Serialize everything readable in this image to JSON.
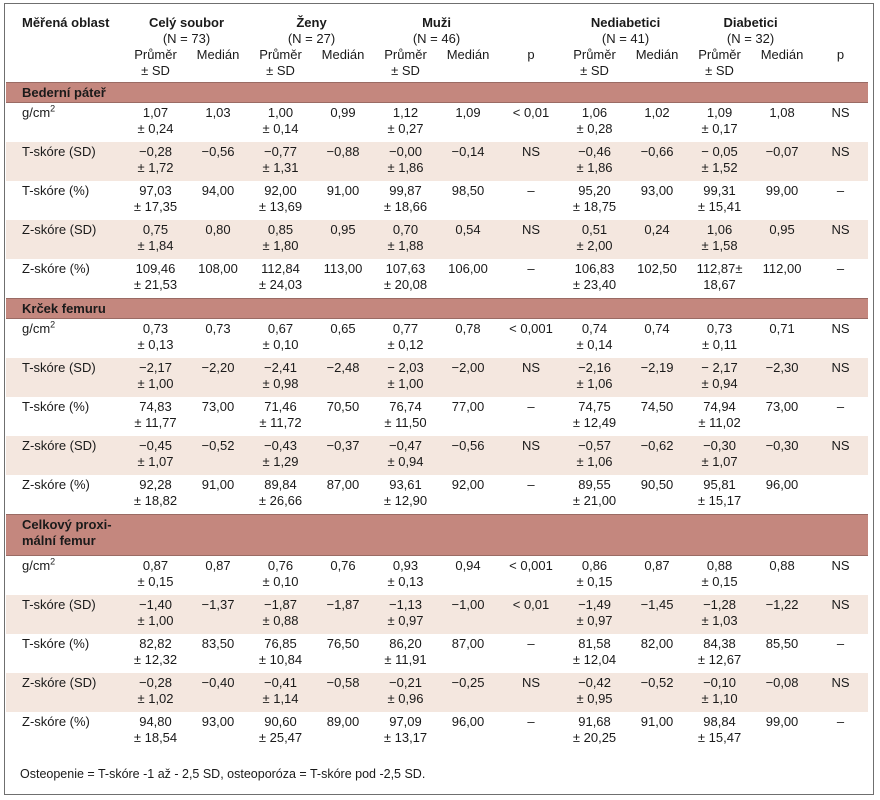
{
  "header": {
    "region_label": "Měřená oblast",
    "groups": [
      {
        "name": "Celý soubor",
        "n": "(N = 73)"
      },
      {
        "name": "Ženy",
        "n": "(N = 27)"
      },
      {
        "name": "Muži",
        "n": "(N = 46)"
      },
      {
        "name": "Nediabetici",
        "n": "(N = 41)"
      },
      {
        "name": "Diabetici",
        "n": "(N = 32)"
      }
    ],
    "mean_label_1": "Průměr",
    "mean_label_2": "± SD",
    "median_label": "Medián",
    "p_label": "p"
  },
  "sections": [
    {
      "title": "Bederní páteř",
      "title_line2": "",
      "rows": [
        {
          "label": "g/cm",
          "sup": "2",
          "c": [
            [
              "1,07",
              "± 0,24"
            ],
            [
              "1,03"
            ],
            [
              "1,00",
              "± 0,14"
            ],
            [
              "0,99"
            ],
            [
              "1,12",
              "± 0,27"
            ],
            [
              "1,09"
            ],
            [
              "< 0,01"
            ],
            [
              "1,06",
              "± 0,28"
            ],
            [
              "1,02"
            ],
            [
              "1,09",
              "± 0,17"
            ],
            [
              "1,08"
            ],
            [
              "NS"
            ]
          ]
        },
        {
          "label": "T-skóre (SD)",
          "sup": "",
          "c": [
            [
              "−0,28",
              "± 1,72"
            ],
            [
              "−0,56"
            ],
            [
              "−0,77",
              "± 1,31"
            ],
            [
              "−0,88"
            ],
            [
              "−0,00",
              "± 1,86"
            ],
            [
              "−0,14"
            ],
            [
              "NS"
            ],
            [
              "−0,46",
              "± 1,86"
            ],
            [
              "−0,66"
            ],
            [
              "− 0,05",
              "± 1,52"
            ],
            [
              "−0,07"
            ],
            [
              "NS"
            ]
          ]
        },
        {
          "label": "T-skóre (%)",
          "sup": "",
          "c": [
            [
              "97,03",
              "± 17,35"
            ],
            [
              "94,00"
            ],
            [
              "92,00",
              "± 13,69"
            ],
            [
              "91,00"
            ],
            [
              "99,87",
              "± 18,66"
            ],
            [
              "98,50"
            ],
            [
              "–"
            ],
            [
              "95,20",
              "± 18,75"
            ],
            [
              "93,00"
            ],
            [
              "99,31",
              "± 15,41"
            ],
            [
              "99,00"
            ],
            [
              "–"
            ]
          ]
        },
        {
          "label": "Z-skóre (SD)",
          "sup": "",
          "c": [
            [
              "0,75",
              "± 1,84"
            ],
            [
              "0,80"
            ],
            [
              "0,85",
              "± 1,80"
            ],
            [
              "0,95"
            ],
            [
              "0,70",
              "± 1,88"
            ],
            [
              "0,54"
            ],
            [
              "NS"
            ],
            [
              "0,51",
              "± 2,00"
            ],
            [
              "0,24"
            ],
            [
              "1,06",
              "± 1,58"
            ],
            [
              "0,95"
            ],
            [
              "NS"
            ]
          ]
        },
        {
          "label": "Z-skóre (%)",
          "sup": "",
          "c": [
            [
              "109,46",
              "± 21,53"
            ],
            [
              "108,00"
            ],
            [
              "112,84",
              "± 24,03"
            ],
            [
              "113,00"
            ],
            [
              "107,63",
              "± 20,08"
            ],
            [
              "106,00"
            ],
            [
              "–"
            ],
            [
              "106,83",
              "± 23,40"
            ],
            [
              "102,50"
            ],
            [
              "112,87±",
              "18,67"
            ],
            [
              "112,00"
            ],
            [
              "–"
            ]
          ]
        }
      ]
    },
    {
      "title": "Krček femuru",
      "title_line2": "",
      "rows": [
        {
          "label": "g/cm",
          "sup": "2",
          "c": [
            [
              "0,73",
              "± 0,13"
            ],
            [
              "0,73"
            ],
            [
              "0,67",
              "± 0,10"
            ],
            [
              "0,65"
            ],
            [
              "0,77",
              "± 0,12"
            ],
            [
              "0,78"
            ],
            [
              "< 0,001"
            ],
            [
              "0,74",
              "± 0,14"
            ],
            [
              "0,74"
            ],
            [
              "0,73",
              "± 0,11"
            ],
            [
              "0,71"
            ],
            [
              "NS"
            ]
          ]
        },
        {
          "label": "T-skóre (SD)",
          "sup": "",
          "c": [
            [
              "−2,17",
              "± 1,00"
            ],
            [
              "−2,20"
            ],
            [
              "−2,41",
              "± 0,98"
            ],
            [
              "−2,48"
            ],
            [
              "− 2,03",
              "± 1,00"
            ],
            [
              "−2,00"
            ],
            [
              "NS"
            ],
            [
              "−2,16",
              "± 1,06"
            ],
            [
              "−2,19"
            ],
            [
              "− 2,17",
              "± 0,94"
            ],
            [
              "−2,30"
            ],
            [
              "NS"
            ]
          ]
        },
        {
          "label": "T-skóre (%)",
          "sup": "",
          "c": [
            [
              "74,83",
              "± 11,77"
            ],
            [
              "73,00"
            ],
            [
              "71,46",
              "± 11,72"
            ],
            [
              "70,50"
            ],
            [
              "76,74",
              "± 11,50"
            ],
            [
              "77,00"
            ],
            [
              "–"
            ],
            [
              "74,75",
              "± 12,49"
            ],
            [
              "74,50"
            ],
            [
              "74,94",
              "± 11,02"
            ],
            [
              "73,00"
            ],
            [
              "–"
            ]
          ]
        },
        {
          "label": "Z-skóre (SD)",
          "sup": "",
          "c": [
            [
              "−0,45",
              "± 1,07"
            ],
            [
              "−0,52"
            ],
            [
              "−0,43",
              "± 1,29"
            ],
            [
              "−0,37"
            ],
            [
              "−0,47",
              "± 0,94"
            ],
            [
              "−0,56"
            ],
            [
              "NS"
            ],
            [
              "−0,57",
              "± 1,06"
            ],
            [
              "−0,62"
            ],
            [
              "−0,30",
              "± 1,07"
            ],
            [
              "−0,30"
            ],
            [
              "NS"
            ]
          ]
        },
        {
          "label": "Z-skóre (%)",
          "sup": "",
          "c": [
            [
              "92,28",
              "± 18,82"
            ],
            [
              "91,00"
            ],
            [
              "89,84",
              "± 26,66"
            ],
            [
              "87,00"
            ],
            [
              "93,61",
              "± 12,90"
            ],
            [
              "92,00"
            ],
            [
              "–"
            ],
            [
              "89,55",
              "± 21,00"
            ],
            [
              "90,50"
            ],
            [
              "95,81",
              "± 15,17"
            ],
            [
              "96,00"
            ],
            [
              ""
            ]
          ]
        }
      ]
    },
    {
      "title": "Celkový proxi-",
      "title_line2": "mální femur",
      "rows": [
        {
          "label": "g/cm",
          "sup": "2",
          "c": [
            [
              "0,87",
              "± 0,15"
            ],
            [
              "0,87"
            ],
            [
              "0,76",
              "± 0,10"
            ],
            [
              "0,76"
            ],
            [
              "0,93",
              "± 0,13"
            ],
            [
              "0,94"
            ],
            [
              "< 0,001"
            ],
            [
              "0,86",
              "± 0,15"
            ],
            [
              "0,87"
            ],
            [
              "0,88",
              "± 0,15"
            ],
            [
              "0,88"
            ],
            [
              "NS"
            ]
          ]
        },
        {
          "label": "T-skóre (SD)",
          "sup": "",
          "c": [
            [
              "−1,40",
              "± 1,00"
            ],
            [
              "−1,37"
            ],
            [
              "−1,87",
              "± 0,88"
            ],
            [
              "−1,87"
            ],
            [
              "−1,13",
              "± 0,97"
            ],
            [
              "−1,00"
            ],
            [
              "< 0,01"
            ],
            [
              "−1,49",
              "± 0,97"
            ],
            [
              "−1,45"
            ],
            [
              "−1,28",
              "± 1,03"
            ],
            [
              "−1,22"
            ],
            [
              "NS"
            ]
          ]
        },
        {
          "label": "T-skóre (%)",
          "sup": "",
          "c": [
            [
              "82,82",
              "± 12,32"
            ],
            [
              "83,50"
            ],
            [
              "76,85",
              "± 10,84"
            ],
            [
              "76,50"
            ],
            [
              "86,20",
              "± 11,91"
            ],
            [
              "87,00"
            ],
            [
              "–"
            ],
            [
              "81,58",
              "± 12,04"
            ],
            [
              "82,00"
            ],
            [
              "84,38",
              "± 12,67"
            ],
            [
              "85,50"
            ],
            [
              "–"
            ]
          ]
        },
        {
          "label": "Z-skóre (SD)",
          "sup": "",
          "c": [
            [
              "−0,28",
              "± 1,02"
            ],
            [
              "−0,40"
            ],
            [
              "−0,41",
              "± 1,14"
            ],
            [
              "−0,58"
            ],
            [
              "−0,21",
              "± 0,96"
            ],
            [
              "−0,25"
            ],
            [
              "NS"
            ],
            [
              "−0,42",
              "± 0,95"
            ],
            [
              "−0,52"
            ],
            [
              "−0,10",
              "± 1,10"
            ],
            [
              "−0,08"
            ],
            [
              "NS"
            ]
          ]
        },
        {
          "label": "Z-skóre (%)",
          "sup": "",
          "c": [
            [
              "94,80",
              "± 18,54"
            ],
            [
              "93,00"
            ],
            [
              "90,60",
              "± 25,47"
            ],
            [
              "89,00"
            ],
            [
              "97,09",
              "± 13,17"
            ],
            [
              "96,00"
            ],
            [
              "–"
            ],
            [
              "91,68",
              "± 20,25"
            ],
            [
              "91,00"
            ],
            [
              "98,84",
              "± 15,47"
            ],
            [
              "99,00"
            ],
            [
              "–"
            ]
          ]
        }
      ]
    }
  ],
  "footnote": "Osteopenie = T-skóre  -1 až - 2,5 SD, osteoporóza = T-skóre pod -2,5 SD."
}
